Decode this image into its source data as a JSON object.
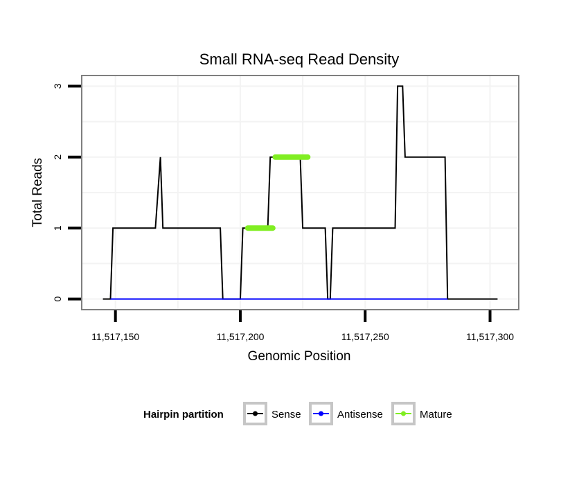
{
  "chart_data": {
    "type": "line",
    "title": "Small RNA-seq Read Density",
    "xlabel": "Genomic Position",
    "ylabel": "Total Reads",
    "xlim": [
      11517136.5,
      11517311.5
    ],
    "ylim": [
      -0.15,
      3.15
    ],
    "x_ticks": [
      11517150,
      11517200,
      11517250,
      11517300
    ],
    "x_tick_labels": [
      "11,517,150",
      "11,517,200",
      "11,517,250",
      "11,517,300"
    ],
    "y_ticks": [
      0,
      1,
      2,
      3
    ],
    "y_tick_labels": [
      "0",
      "1",
      "2",
      "3"
    ],
    "grid": true,
    "legend_position": "bottom",
    "legend": {
      "title": "Hairpin partition",
      "entries": [
        "Sense",
        "Antisense",
        "Mature"
      ]
    },
    "colors": {
      "Sense": "#000000",
      "Antisense": "#0000ff",
      "Mature": "#80ee22",
      "panel_border": "#7f7f7f",
      "grid": "#f3f3f3",
      "legend_key_border": "#c6c6c6"
    },
    "series": [
      {
        "name": "Sense",
        "x": [
          11517145,
          11517148,
          11517149,
          11517166,
          11517168,
          11517169,
          11517170,
          11517171,
          11517192,
          11517193,
          11517200,
          11517201,
          11517202,
          11517211,
          11517212,
          11517224,
          11517225,
          11517234,
          11517235,
          11517236,
          11517237,
          11517262,
          11517263,
          11517265,
          11517266,
          11517282,
          11517283,
          11517290,
          11517303
        ],
        "y": [
          0,
          0,
          1,
          1,
          2,
          1,
          1,
          1,
          1,
          0,
          0,
          1,
          1,
          1,
          2,
          2,
          1,
          1,
          0,
          0,
          1,
          1,
          3,
          3,
          2,
          2,
          0,
          0,
          0
        ]
      },
      {
        "name": "Antisense",
        "x": [
          11517148,
          11517283
        ],
        "y": [
          0,
          0
        ]
      },
      {
        "name": "Mature",
        "segments": [
          {
            "x": [
              11517203,
              11517213
            ],
            "y": [
              1,
              1
            ]
          },
          {
            "x": [
              11517214,
              11517227
            ],
            "y": [
              2,
              2
            ]
          }
        ]
      }
    ]
  }
}
